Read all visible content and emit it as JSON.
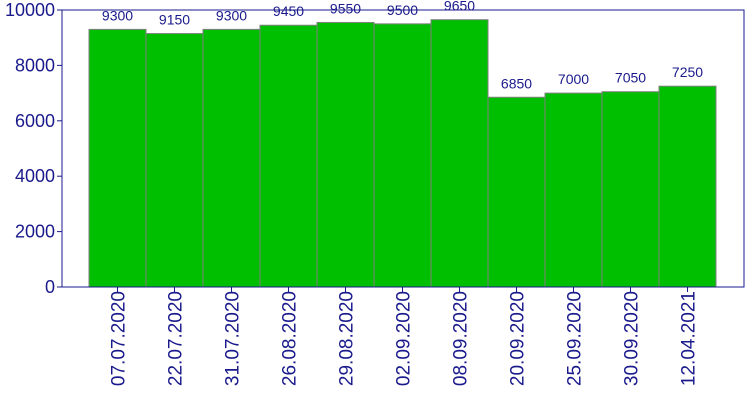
{
  "chart_data": {
    "type": "bar",
    "title": "",
    "xlabel": "",
    "ylabel": "",
    "categories": [
      "07.07.2020",
      "22.07.2020",
      "31.07.2020",
      "26.08.2020",
      "29.08.2020",
      "02.09.2020",
      "08.09.2020",
      "20.09.2020",
      "25.09.2020",
      "30.09.2020",
      "12.04.2021"
    ],
    "values": [
      9300,
      9150,
      9300,
      9450,
      9550,
      9500,
      9650,
      6850,
      7000,
      7050,
      7250
    ],
    "data_labels": [
      "9300",
      "9150",
      "9300",
      "9450",
      "9550",
      "9500",
      "9650",
      "6850",
      "7000",
      "7050",
      "7250"
    ],
    "ylim": [
      0,
      10000
    ],
    "yticks": [
      0,
      2000,
      4000,
      6000,
      8000,
      10000
    ],
    "ytick_labels": [
      "0",
      "2000",
      "4000",
      "6000",
      "8000",
      "10000"
    ],
    "grid": false,
    "colors": {
      "bar": "#00bf00",
      "bar_edge": "#808080",
      "text": "#1a1a8c",
      "axis": "#1a1a8c"
    }
  }
}
